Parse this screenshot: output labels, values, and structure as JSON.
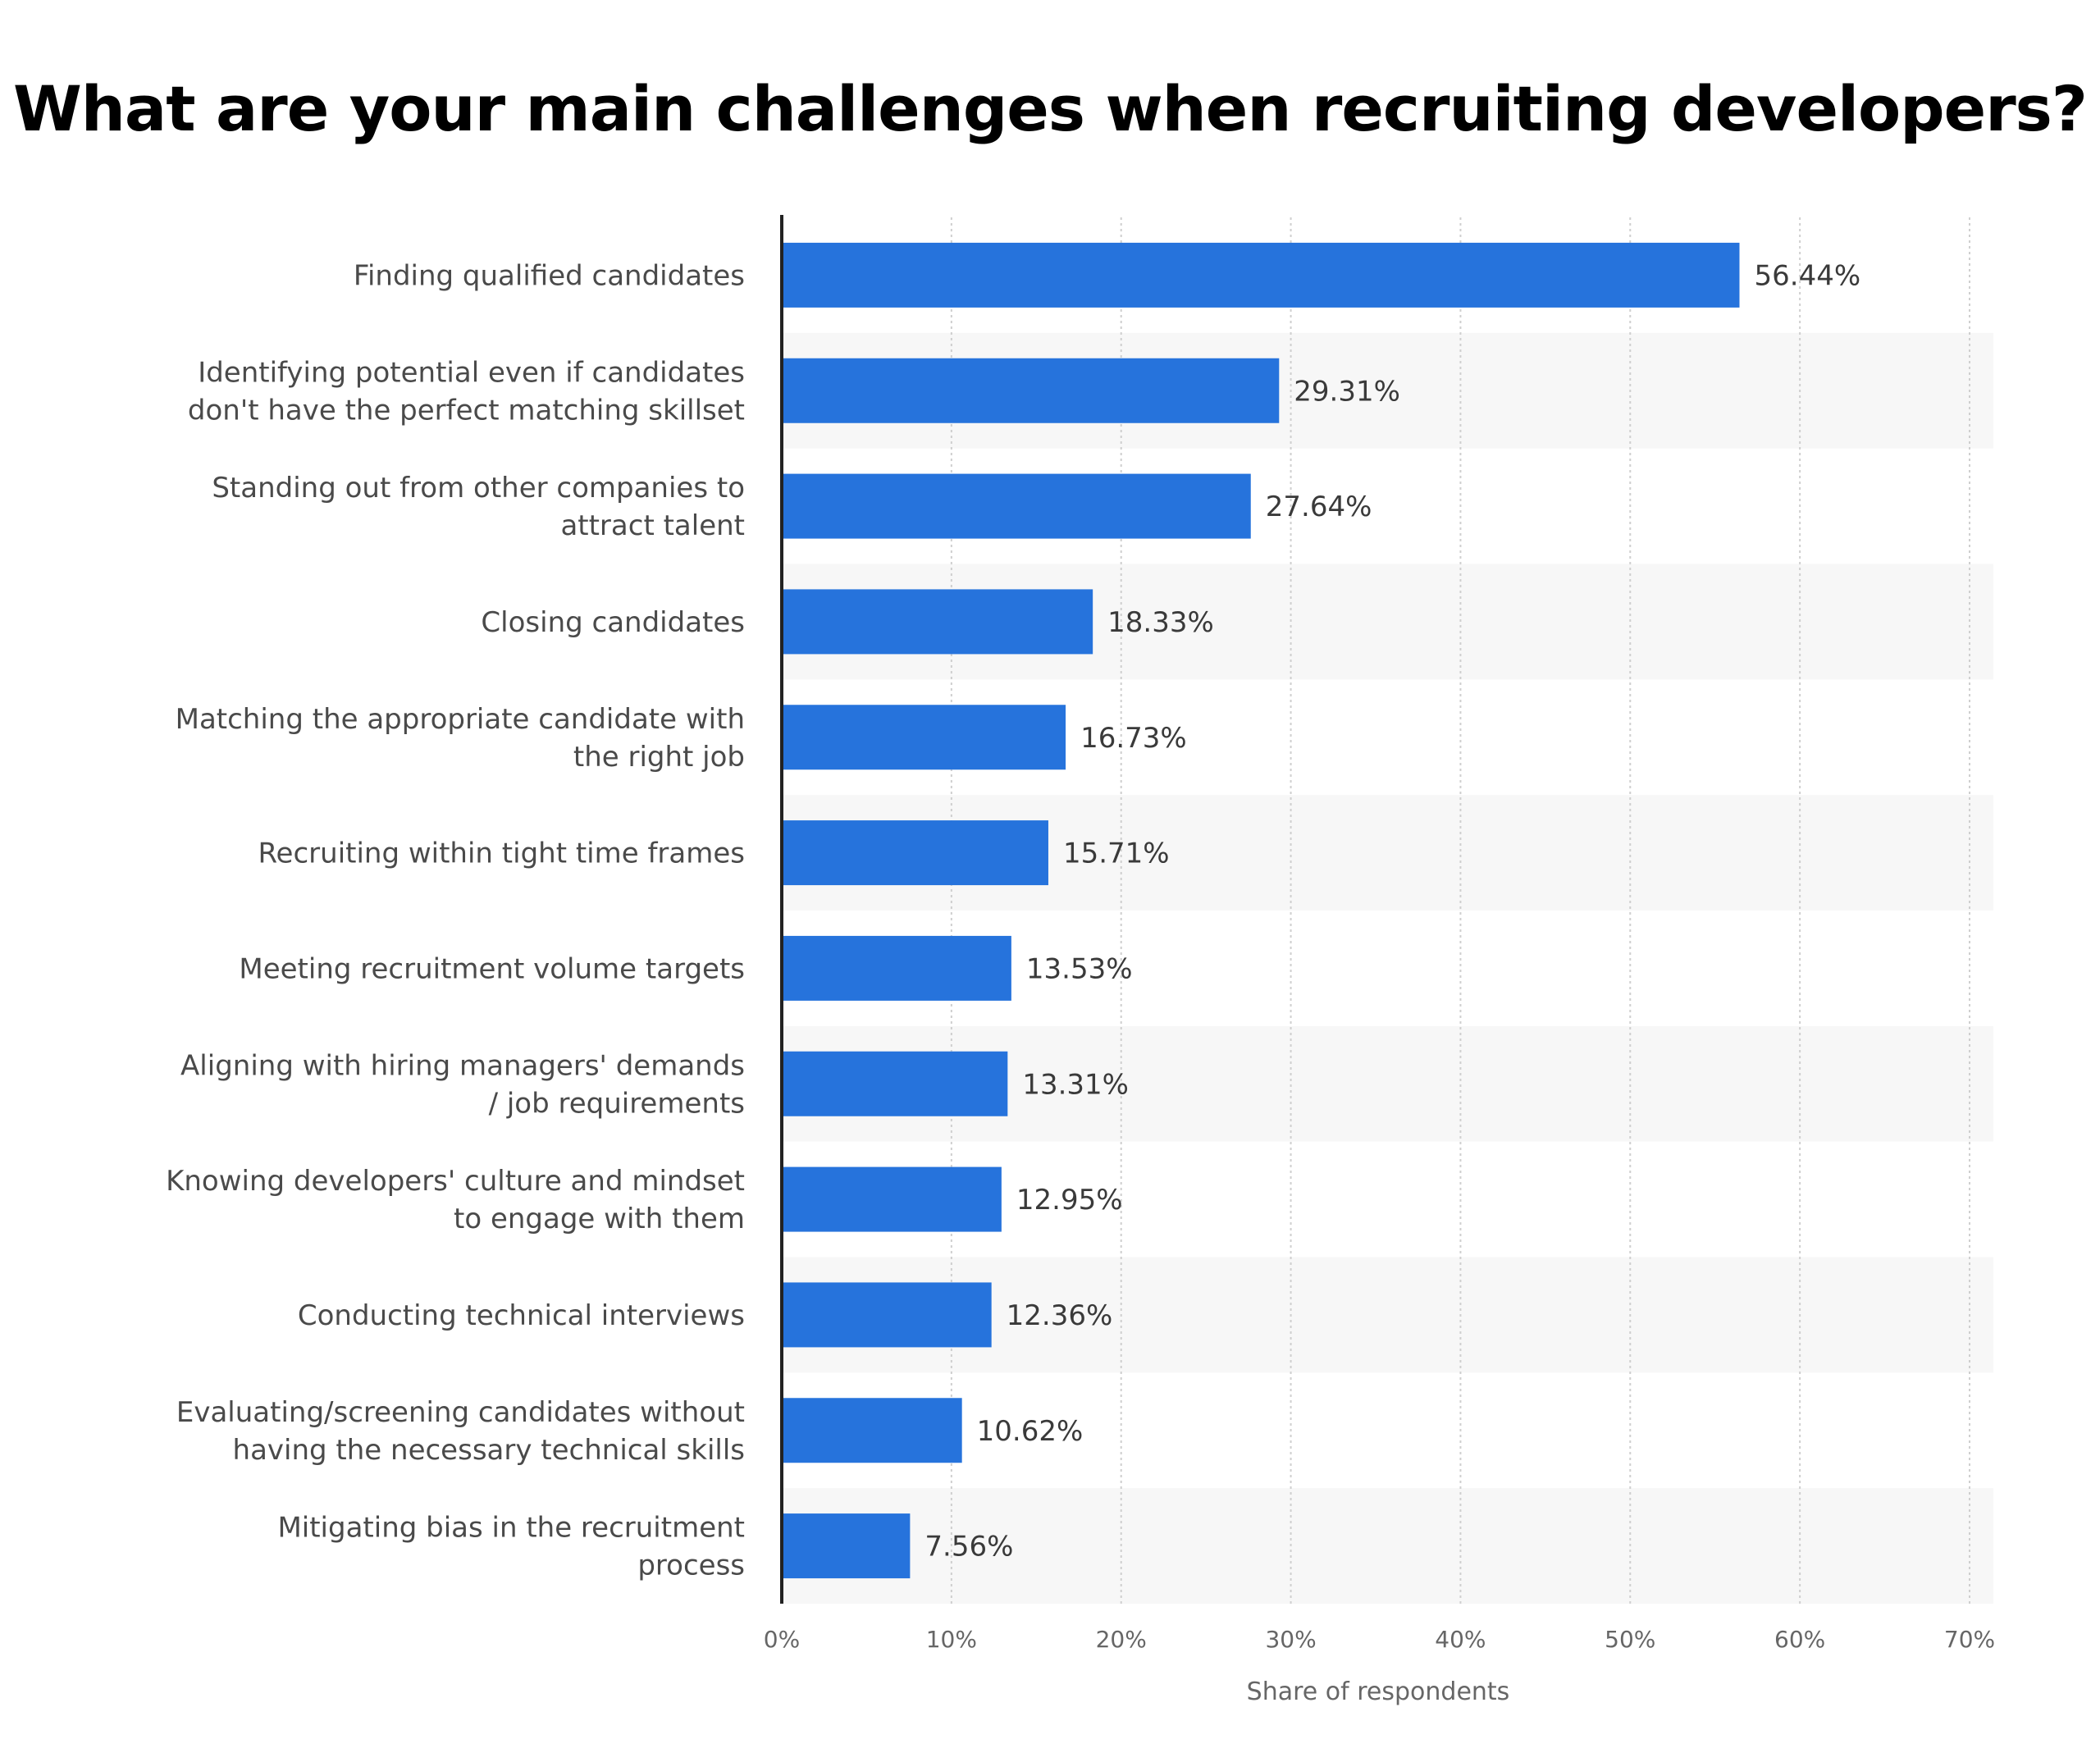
{
  "chart_data": {
    "type": "bar",
    "orientation": "horizontal",
    "title": "What are your main challenges when recruiting developers?",
    "xlabel": "Share of respondents",
    "ylabel": "",
    "xlim": [
      0,
      70
    ],
    "x_ticks": [
      "0%",
      "10%",
      "20%",
      "30%",
      "40%",
      "50%",
      "60%",
      "70%"
    ],
    "grid": true,
    "bar_color": "#2673DC",
    "stripe_color": "#F7F7F7",
    "categories": [
      [
        "Finding qualified candidates"
      ],
      [
        "Identifying potential even if candidates",
        "don't have the perfect matching skillset"
      ],
      [
        "Standing out from other companies to",
        "attract talent"
      ],
      [
        "Closing candidates"
      ],
      [
        "Matching the appropriate candidate with",
        "the right job"
      ],
      [
        "Recruiting within tight time frames"
      ],
      [
        "Meeting recruitment volume targets"
      ],
      [
        "Aligning with hiring managers' demands",
        "/ job requirements"
      ],
      [
        "Knowing developers' culture and mindset",
        "to engage with them"
      ],
      [
        "Conducting technical interviews"
      ],
      [
        "Evaluating/screening candidates without",
        "having the necessary technical skills"
      ],
      [
        "Mitigating bias in the recruitment",
        "process"
      ]
    ],
    "values": [
      56.44,
      29.31,
      27.64,
      18.33,
      16.73,
      15.71,
      13.53,
      13.31,
      12.95,
      12.36,
      10.62,
      7.56
    ],
    "value_labels": [
      "56.44%",
      "29.31%",
      "27.64%",
      "18.33%",
      "16.73%",
      "15.71%",
      "13.53%",
      "13.31%",
      "12.95%",
      "12.36%",
      "10.62%",
      "7.56%"
    ]
  }
}
